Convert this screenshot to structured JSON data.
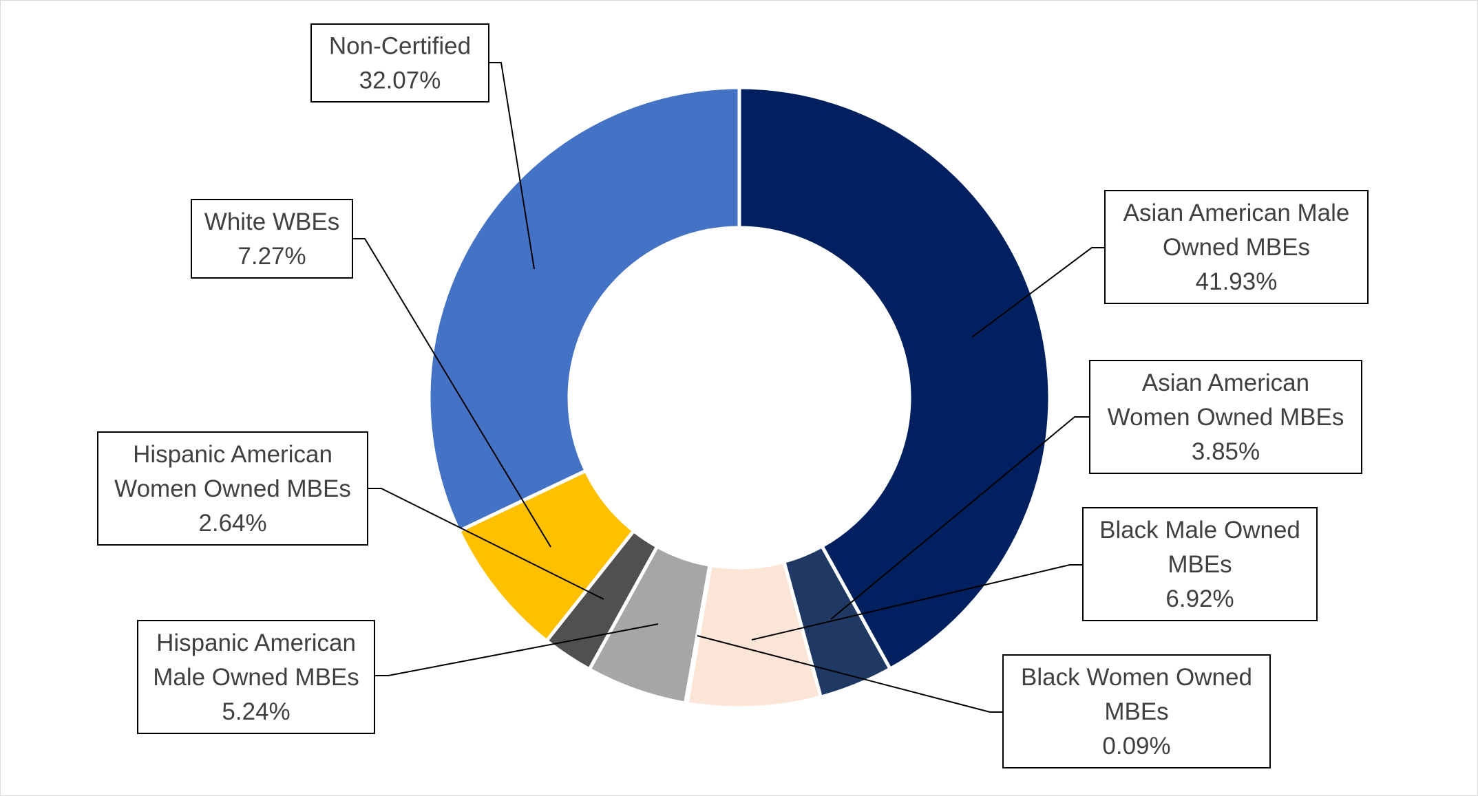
{
  "chart_data": {
    "type": "pie",
    "title": "",
    "donut": true,
    "legend": "none",
    "colors": {
      "border": "#d9d9d9",
      "leader_line": "#000000",
      "label_box": "#000000",
      "label_text": "#404040"
    },
    "slices": [
      {
        "name": "Asian American Male Owned MBEs",
        "label_lines": [
          "Asian American Male",
          "Owned MBEs"
        ],
        "value": 41.93,
        "value_label": "41.93%",
        "color": "#002060"
      },
      {
        "name": "Asian American Women Owned MBEs",
        "label_lines": [
          "Asian American",
          "Women Owned MBEs"
        ],
        "value": 3.85,
        "value_label": "3.85%",
        "color": "#1f3864"
      },
      {
        "name": "Black Male Owned MBEs",
        "label_lines": [
          "Black Male Owned",
          "MBEs"
        ],
        "value": 6.92,
        "value_label": "6.92%",
        "color": "#fbe5d6"
      },
      {
        "name": "Black Women Owned MBEs",
        "label_lines": [
          "Black Women Owned",
          "MBEs"
        ],
        "value": 0.09,
        "value_label": "0.09%",
        "color": "#c55a11"
      },
      {
        "name": "Hispanic American Male Owned MBEs",
        "label_lines": [
          "Hispanic American",
          "Male Owned MBEs"
        ],
        "value": 5.24,
        "value_label": "5.24%",
        "color": "#a6a6a6"
      },
      {
        "name": "Hispanic American Women Owned MBEs",
        "label_lines": [
          "Hispanic American",
          "Women Owned MBEs"
        ],
        "value": 2.64,
        "value_label": "2.64%",
        "color": "#505050"
      },
      {
        "name": "White WBEs",
        "label_lines": [
          "White WBEs"
        ],
        "value": 7.27,
        "value_label": "7.27%",
        "color": "#ffc000"
      },
      {
        "name": "Non-Certified",
        "label_lines": [
          "Non-Certified"
        ],
        "value": 32.07,
        "value_label": "32.07%",
        "color": "#4472c4"
      }
    ]
  }
}
